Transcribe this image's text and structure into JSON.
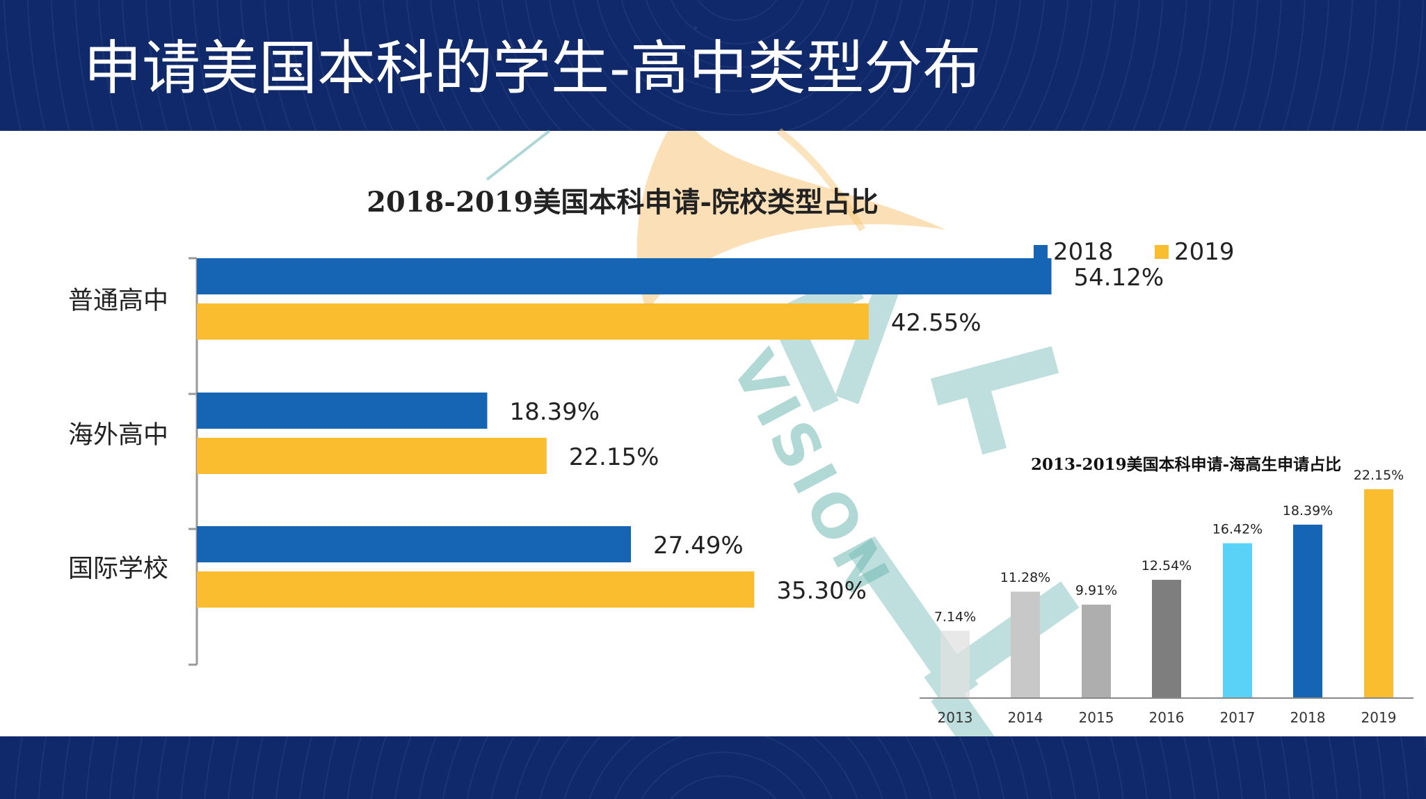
{
  "page": {
    "title": "申请美国本科的学生-高中类型分布"
  },
  "watermark": {
    "text": "VISION"
  },
  "colors": {
    "header_bg": "#10296a",
    "series_2018": "#1565b4",
    "series_2019": "#fbbd30",
    "bar_2013": "#e0e0e0",
    "bar_2014": "#c8c8c8",
    "bar_2015": "#aeaeae",
    "bar_2016": "#7e7e7e",
    "bar_2017": "#5ad2f7",
    "bar_2018": "#1565b4",
    "bar_2019": "#fbbd30"
  },
  "chart_data": [
    {
      "type": "bar",
      "orientation": "horizontal",
      "title": "2018-2019美国本科申请-院校类型占比",
      "categories": [
        "普通高中",
        "海外高中",
        "国际学校"
      ],
      "series": [
        {
          "name": "2018",
          "values": [
            54.12,
            18.39,
            27.49
          ],
          "labels": [
            "54.12%",
            "18.39%",
            "27.49%"
          ]
        },
        {
          "name": "2019",
          "values": [
            42.55,
            22.15,
            35.3
          ],
          "labels": [
            "42.55%",
            "22.15%",
            "35.30%"
          ]
        }
      ],
      "unit": "%",
      "legend_position": "top-right",
      "xlim": [
        0,
        60
      ]
    },
    {
      "type": "bar",
      "title": "2013-2019美国本科申请-海高生申请占比",
      "categories": [
        "2013",
        "2014",
        "2015",
        "2016",
        "2017",
        "2018",
        "2019"
      ],
      "values": [
        7.14,
        11.28,
        9.91,
        12.54,
        16.42,
        18.39,
        22.15
      ],
      "labels": [
        "7.14%",
        "11.28%",
        "9.91%",
        "12.54%",
        "16.42%",
        "18.39%",
        "22.15%"
      ],
      "unit": "%",
      "ylim": [
        0,
        25
      ]
    }
  ]
}
